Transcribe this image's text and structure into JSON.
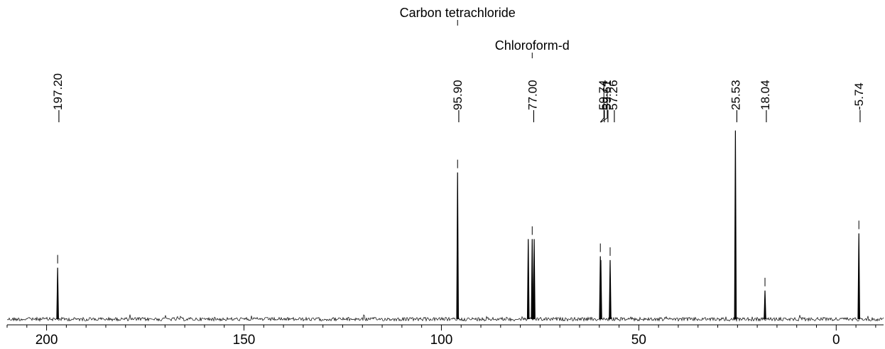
{
  "chart_data": {
    "type": "line",
    "title": "",
    "xlabel": "",
    "ylabel": "",
    "x_reversed": true,
    "xlim": [
      210,
      -12
    ],
    "ylim": [
      0,
      1.0
    ],
    "grid": false,
    "x_ticks": [
      200,
      150,
      100,
      50,
      0
    ],
    "x_tick_labels": [
      "200",
      "150",
      "100",
      "50",
      "0"
    ],
    "series": [
      {
        "x": [
          197.2,
          95.9,
          78.0,
          77.0,
          76.5,
          59.74,
          59.61,
          57.26,
          25.53,
          18.04,
          -5.74
        ],
        "y": [
          0.27,
          0.77,
          0.42,
          0.42,
          0.42,
          0.33,
          0.31,
          0.31,
          0.99,
          0.15,
          0.45
        ]
      }
    ],
    "peak_labels": [
      "197.20",
      "95.90",
      "77.00",
      "59.74",
      "59.61",
      "57.26",
      "25.53",
      "18.04",
      "-5.74"
    ],
    "peak_label_positions": [
      197.2,
      95.9,
      77.0,
      59.74,
      59.61,
      57.26,
      25.53,
      18.04,
      -5.74
    ],
    "annotations": [
      {
        "text": "Carbon tetrachloride",
        "x": 95.9
      },
      {
        "text": "Chloroform-d",
        "x": 77.0
      }
    ],
    "colors": {
      "line": "#000000",
      "background": "#ffffff"
    }
  }
}
